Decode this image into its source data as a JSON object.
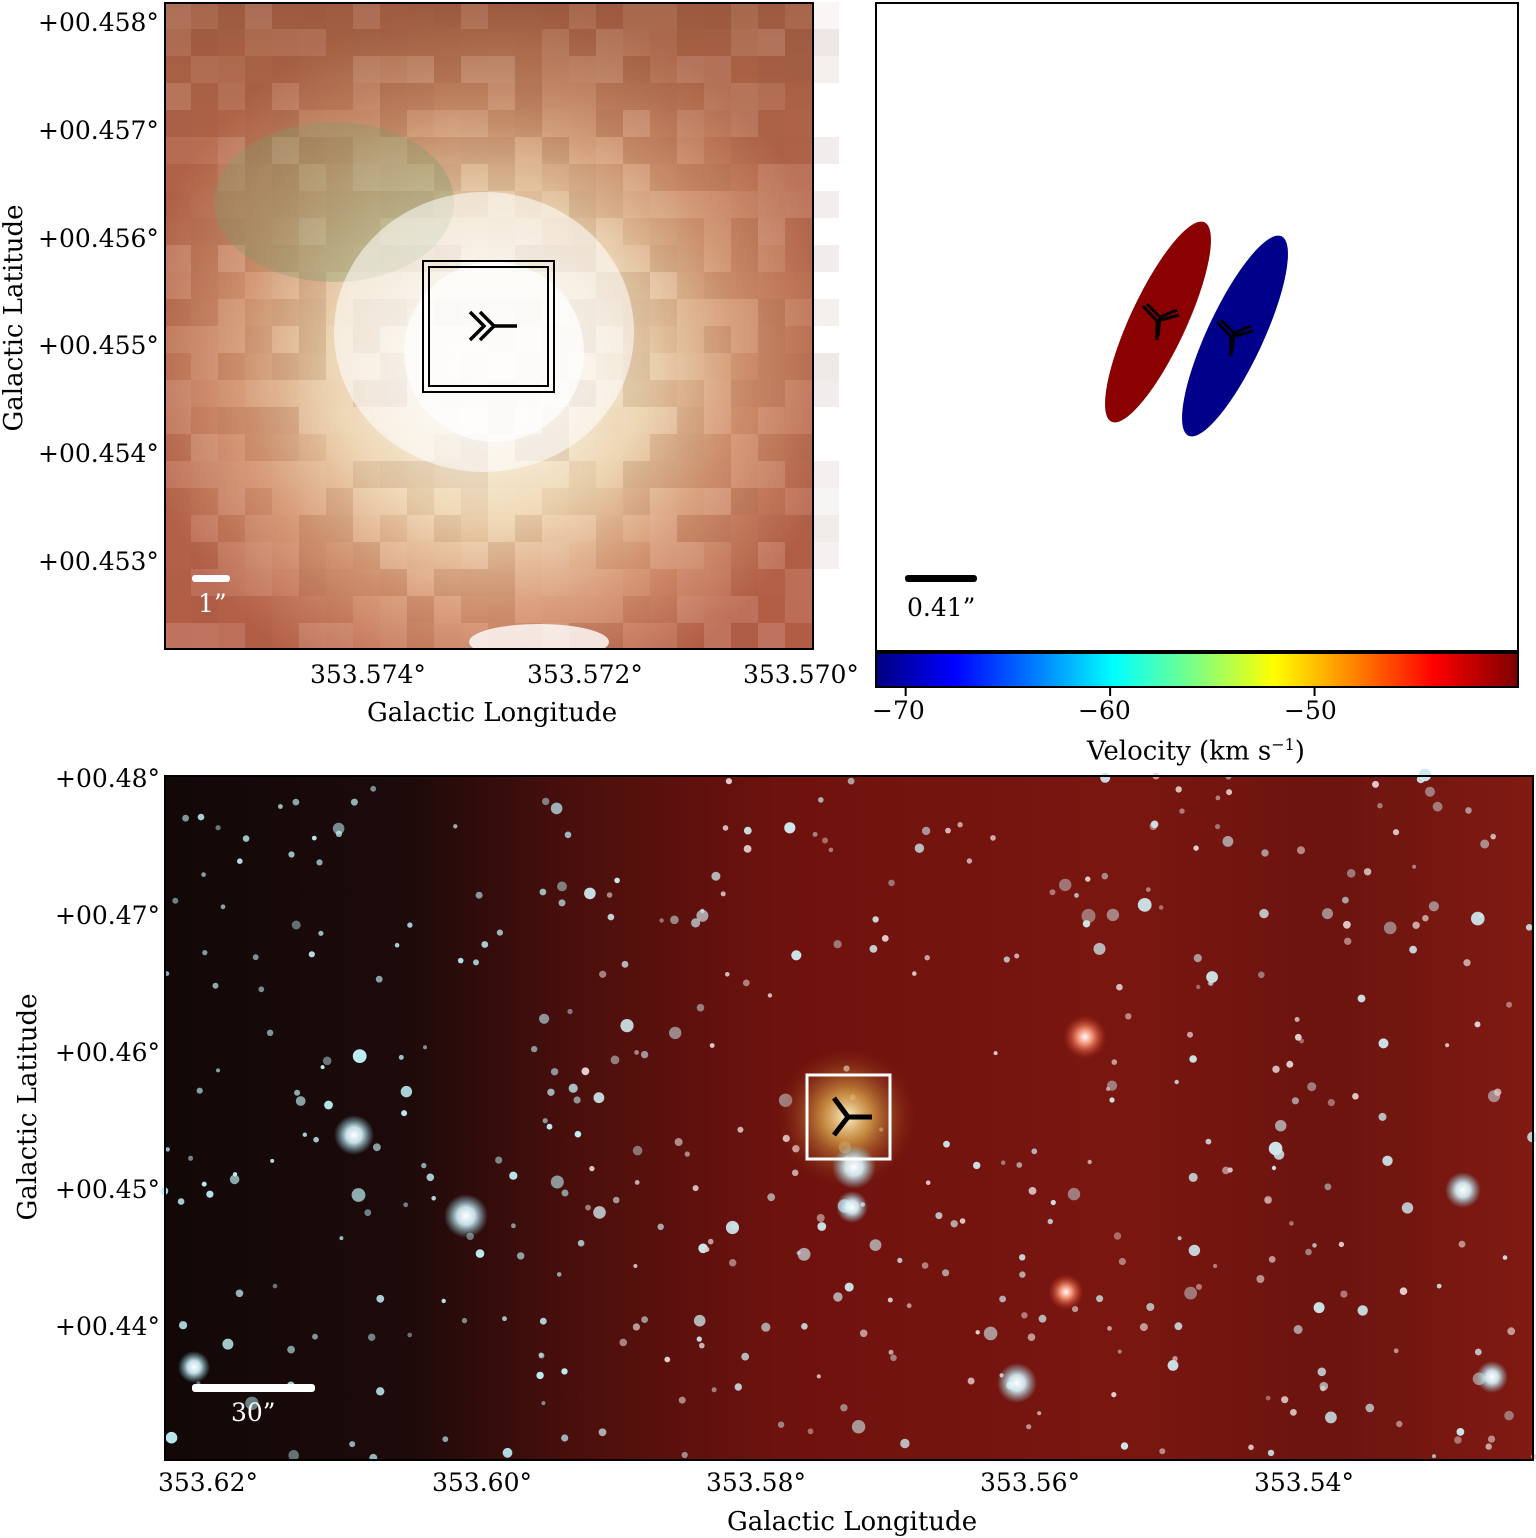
{
  "panel_top_left": {
    "y_ticks": [
      "+00.458°",
      "+00.457°",
      "+00.456°",
      "+00.455°",
      "+00.454°",
      "+00.453°"
    ],
    "x_ticks": [
      "353.574°",
      "353.572°",
      "353.570°"
    ],
    "xlabel": "Galactic Longitude",
    "ylabel": "Galactic Latitude",
    "scalebar": "1”",
    "colors": {
      "glow": "#fffbee",
      "haze": "#c97a5a",
      "mid": "#e8b48c",
      "frame": "#000000"
    }
  },
  "panel_top_right": {
    "scalebar": "0.41”",
    "ellipses": [
      {
        "name": "redshifted-component",
        "color": "#8b0000"
      },
      {
        "name": "blueshifted-component",
        "color": "#00008b"
      }
    ],
    "colorbar": {
      "ticks": [
        "−70",
        "−60",
        "−50"
      ],
      "tick_values": [
        -70,
        -60,
        -50
      ],
      "range": [
        -71.5,
        -40
      ],
      "label_main": "Velocity (km s",
      "label_sup": "−1",
      "label_close": ")",
      "colormap": "jet"
    }
  },
  "panel_bottom": {
    "y_ticks": [
      "+00.48°",
      "+00.47°",
      "+00.46°",
      "+00.45°",
      "+00.44°"
    ],
    "x_ticks": [
      "353.62°",
      "353.60°",
      "353.58°",
      "353.56°",
      "353.54°"
    ],
    "xlabel": "Galactic Longitude",
    "ylabel": "Galactic Latitude",
    "scalebar": "30”",
    "colors": {
      "sky_dark": "#1a0c0c",
      "sky_red": "#7a1410",
      "star": "#e8fbff",
      "box": "#ffffff"
    }
  }
}
